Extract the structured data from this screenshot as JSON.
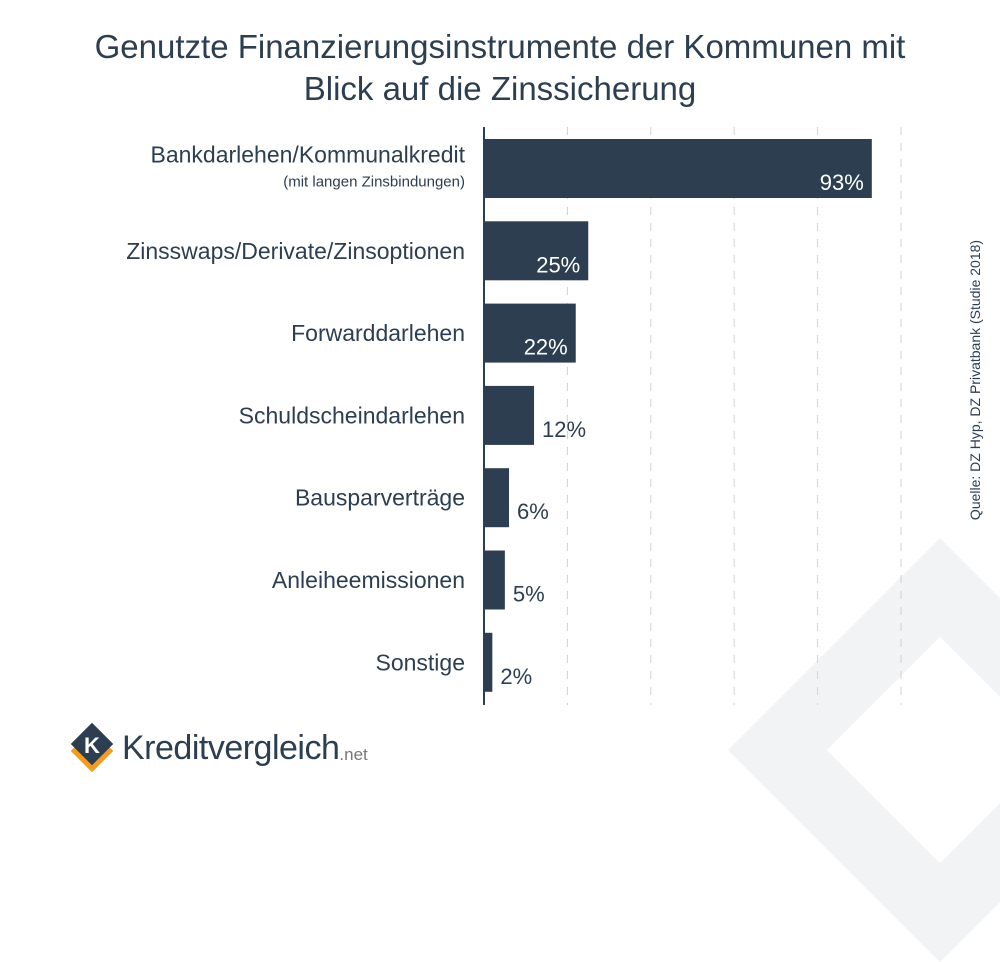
{
  "chart_data": {
    "type": "bar",
    "orientation": "horizontal",
    "title": "Genutzte Finanzierungsinstrumente der Kommunen mit Blick auf die Zinssicherung",
    "categories": [
      "Bankdarlehen/Kommunalkredit",
      "Zinsswaps/Derivate/Zinsoptionen",
      "Forwarddarlehen",
      "Schuldscheindarlehen",
      "Bausparverträge",
      "Anleiheemissionen",
      "Sonstige"
    ],
    "subcategory_notes": [
      "(mit langen Zinsbindungen)",
      "",
      "",
      "",
      "",
      "",
      ""
    ],
    "values": [
      93,
      25,
      22,
      12,
      6,
      5,
      2
    ],
    "value_labels": [
      "93%",
      "25%",
      "22%",
      "12%",
      "6%",
      "5%",
      "2%"
    ],
    "xlim": [
      0,
      100
    ],
    "gridlines": [
      20,
      40,
      60,
      80,
      100
    ],
    "grid": true,
    "xlabel": "",
    "ylabel": "",
    "bar_color": "#2c3e50"
  },
  "title_line1": "Genutzte Finanzierungsinstrumente der Kommunen mit",
  "title_line2": "Blick auf die Zinssicherung",
  "source": "Quelle: DZ Hyp, DZ Privatbank (Studie 2018)",
  "logo": {
    "brand": "Kreditvergleich",
    "tld": ".net"
  }
}
